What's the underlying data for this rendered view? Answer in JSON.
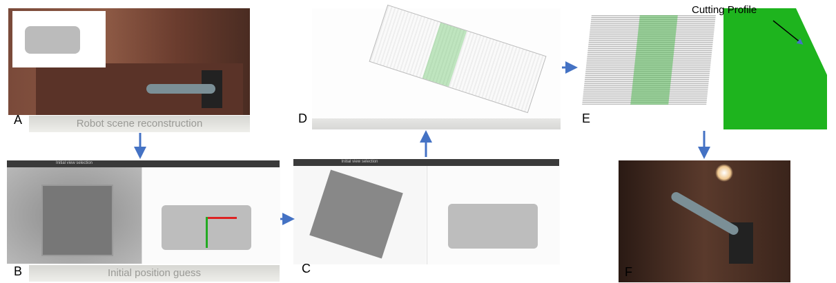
{
  "panels": [
    {
      "label": "A",
      "caption": "Robot scene reconstruction"
    },
    {
      "label": "B",
      "caption": "Initial position guess",
      "window_title": "Initial view selection"
    },
    {
      "label": "C",
      "window_title": "Initial view selection"
    },
    {
      "label": "D"
    },
    {
      "label": "E",
      "annotation": "Cutting Profile"
    },
    {
      "label": "F"
    }
  ]
}
